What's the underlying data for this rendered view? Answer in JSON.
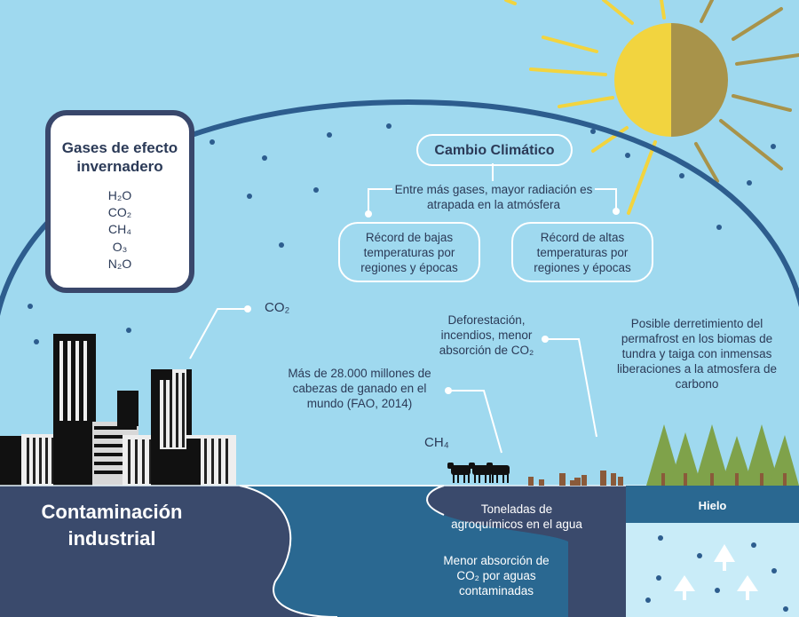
{
  "gases": {
    "title": "Gases de efecto invernadero",
    "items": [
      "H₂O",
      "CO₂",
      "CH₄",
      "O₃",
      "N₂O"
    ]
  },
  "cambio": {
    "title": "Cambio Climático",
    "subtitle": "Entre más gases, mayor radiación es atrapada en la atmósfera",
    "low": "Récord de bajas temperaturas por regiones y épocas",
    "high": "Récord de altas temperaturas por regiones y épocas"
  },
  "labels": {
    "co2": "CO₂",
    "ch4": "CH₄",
    "deforestation": "Deforestación, incendios, menor absorción de CO₂",
    "cattle": "Más de 28.000 millones de cabezas de ganado en el mundo (FAO, 2014)",
    "permafrost": "Posible derretimiento del permafrost en los biomas de tundra y taiga con inmensas liberaciones a la atmosfera de carbono",
    "industrial": "Contaminación industrial",
    "agro": "Toneladas de agroquímicos en el agua",
    "absorption": "Menor absorción de CO₂ por aguas contaminadas",
    "ice": "Hielo"
  },
  "colors": {
    "sky": "#9fd9ef",
    "navy": "#39476b",
    "sea": "#2a6891",
    "ice": "#c9ecf8",
    "sun_light": "#f2d43f",
    "sun_dark": "#a8934a",
    "tree": "#7fa24a"
  }
}
